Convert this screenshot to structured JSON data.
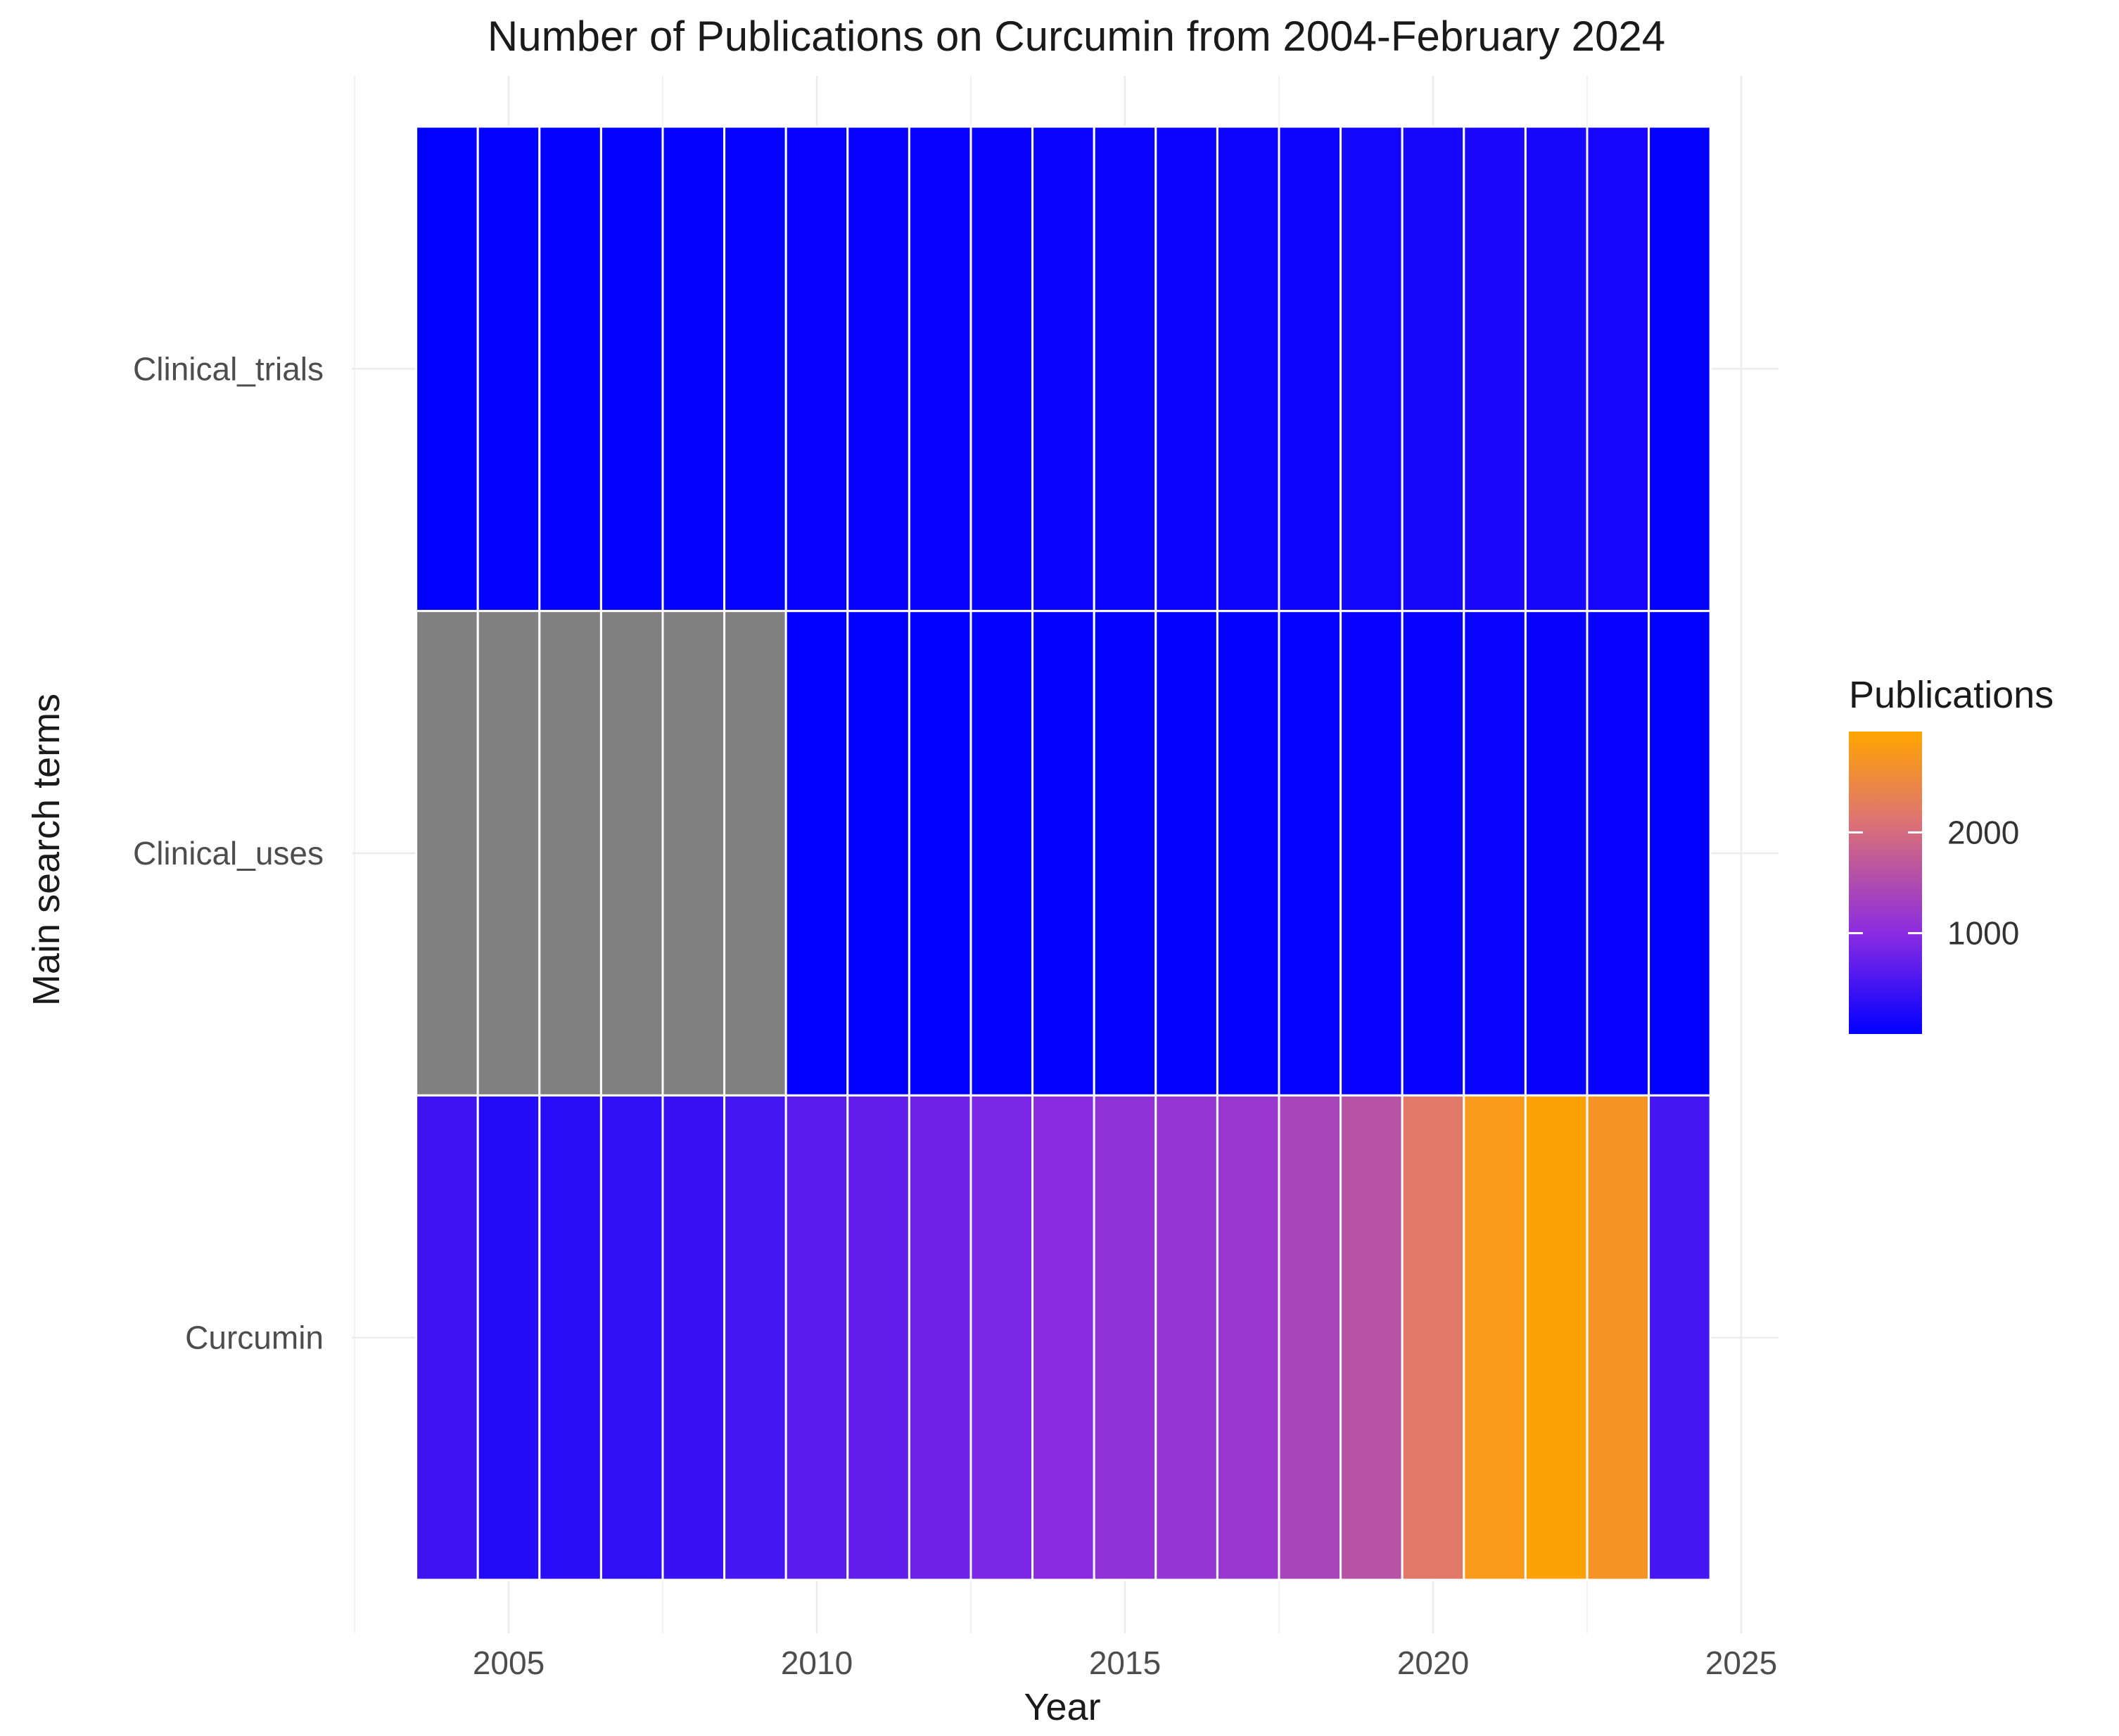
{
  "chart_data": {
    "type": "heatmap",
    "title": "Number of Publications on Curcumin from 2004-February 2024",
    "xlabel": "Year",
    "ylabel": "Main search terms",
    "x": [
      2004,
      2005,
      2006,
      2007,
      2008,
      2009,
      2010,
      2011,
      2012,
      2013,
      2014,
      2015,
      2016,
      2017,
      2018,
      2019,
      2020,
      2021,
      2022,
      2023,
      2024
    ],
    "x_ticks": [
      2005,
      2010,
      2015,
      2020,
      2025
    ],
    "xlim": [
      2002,
      2025.5
    ],
    "categories": [
      "Clinical_trials",
      "Clinical_uses",
      "Curcumin"
    ],
    "series": [
      {
        "name": "Clinical_trials",
        "values": [
          10,
          15,
          20,
          25,
          30,
          35,
          40,
          45,
          50,
          55,
          60,
          70,
          80,
          90,
          110,
          130,
          160,
          180,
          170,
          150,
          20
        ]
      },
      {
        "name": "Clinical_uses",
        "values": [
          null,
          null,
          null,
          null,
          null,
          null,
          5,
          8,
          10,
          12,
          15,
          20,
          25,
          30,
          35,
          40,
          50,
          60,
          55,
          50,
          5
        ]
      },
      {
        "name": "Curcumin",
        "values": [
          450,
          250,
          300,
          350,
          400,
          500,
          650,
          700,
          800,
          900,
          1000,
          1100,
          1150,
          1200,
          1400,
          1600,
          2200,
          2800,
          2950,
          2700,
          500
        ]
      }
    ],
    "legend": {
      "title": "Publications",
      "ticks": [
        1000,
        2000
      ],
      "range": [
        0,
        3000
      ],
      "colors": [
        "#0000FF",
        "#8A2BE2",
        "#E0766E",
        "#FFA500"
      ],
      "placement": "right"
    },
    "na_color": "#808080",
    "grid": true
  }
}
